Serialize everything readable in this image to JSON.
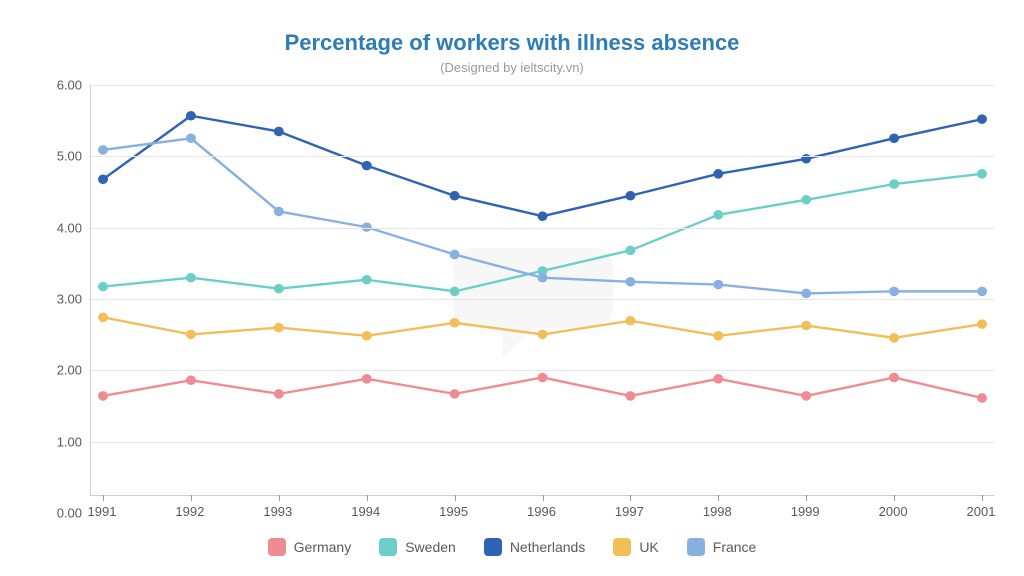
{
  "chart": {
    "title": "Percentage of workers with illness absence",
    "subtitle": "(Designed by ieltscity.vn)",
    "title_color": "#2d7db8",
    "title_fontsize": 22,
    "subtitle_color": "#9a9a9a",
    "subtitle_fontsize": 13,
    "background_color": "#ffffff",
    "grid_color": "#e5e5e5",
    "axis_color": "#9a9a9a",
    "label_color": "#5a5a5a",
    "label_fontsize": 13,
    "type": "line",
    "x": {
      "categories": [
        "1991",
        "1992",
        "1993",
        "1994",
        "1995",
        "1996",
        "1997",
        "1998",
        "1999",
        "2000",
        "2001"
      ]
    },
    "y": {
      "min": 0.0,
      "max": 6.0,
      "tick_step": 1.0,
      "decimals": 2
    },
    "line_width": 2.5,
    "marker_radius": 5,
    "series": [
      {
        "name": "Germany",
        "color": "#ef8c93",
        "values": [
          1.45,
          1.68,
          1.48,
          1.7,
          1.48,
          1.72,
          1.45,
          1.7,
          1.45,
          1.72,
          1.42
        ]
      },
      {
        "name": "Sweden",
        "color": "#6bcfc8",
        "values": [
          3.05,
          3.18,
          3.02,
          3.15,
          2.98,
          3.28,
          3.58,
          4.1,
          4.32,
          4.55,
          4.7
        ]
      },
      {
        "name": "Netherlands",
        "color": "#2f64b3",
        "values": [
          4.62,
          5.55,
          5.32,
          4.82,
          4.38,
          4.08,
          4.38,
          4.7,
          4.92,
          5.22,
          5.5
        ]
      },
      {
        "name": "UK",
        "color": "#f2be58",
        "values": [
          2.6,
          2.35,
          2.45,
          2.33,
          2.52,
          2.35,
          2.55,
          2.33,
          2.48,
          2.3,
          2.5
        ]
      },
      {
        "name": "France",
        "color": "#88b1e0",
        "values": [
          5.05,
          5.22,
          4.15,
          3.92,
          3.52,
          3.18,
          3.12,
          3.08,
          2.95,
          2.98,
          2.98
        ]
      }
    ],
    "legend": {
      "items": [
        "Germany",
        "Sweden",
        "Netherlands",
        "UK",
        "France"
      ],
      "swatch_size": 18,
      "fontsize": 14,
      "position": "bottom-center"
    }
  }
}
